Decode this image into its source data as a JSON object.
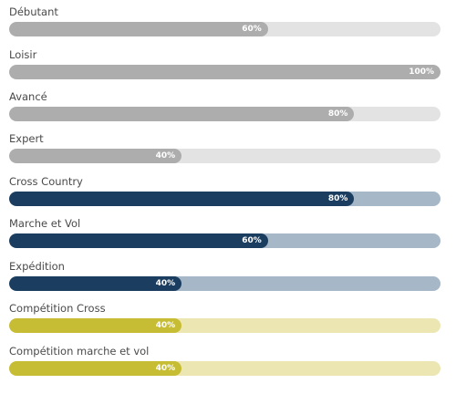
{
  "skills": [
    {
      "label": "Débutant",
      "value_text": "60%",
      "value": 0.6,
      "fill_color": "#adadad",
      "track_color": "#e3e3e3"
    },
    {
      "label": "Loisir",
      "value_text": "100%",
      "value": 1.0,
      "fill_color": "#adadad",
      "track_color": "#e3e3e3"
    },
    {
      "label": "Avancé",
      "value_text": "80%",
      "value": 0.8,
      "fill_color": "#adadad",
      "track_color": "#e3e3e3"
    },
    {
      "label": "Expert",
      "value_text": "40%",
      "value": 0.4,
      "fill_color": "#adadad",
      "track_color": "#e3e3e3"
    },
    {
      "label": "Cross Country",
      "value_text": "80%",
      "value": 0.8,
      "fill_color": "#1b3e60",
      "track_color": "#a6b7c7"
    },
    {
      "label": "Marche et Vol",
      "value_text": "60%",
      "value": 0.6,
      "fill_color": "#1b3e60",
      "track_color": "#a6b7c7"
    },
    {
      "label": "Expédition",
      "value_text": "40%",
      "value": 0.4,
      "fill_color": "#1b3e60",
      "track_color": "#a6b7c7"
    },
    {
      "label": "Compétition Cross",
      "value_text": "40%",
      "value": 0.4,
      "fill_color": "#c6bd34",
      "track_color": "#ece6b3"
    },
    {
      "label": "Compétition marche et vol",
      "value_text": "40%",
      "value": 0.4,
      "fill_color": "#c6bd34",
      "track_color": "#ece6b3"
    }
  ]
}
